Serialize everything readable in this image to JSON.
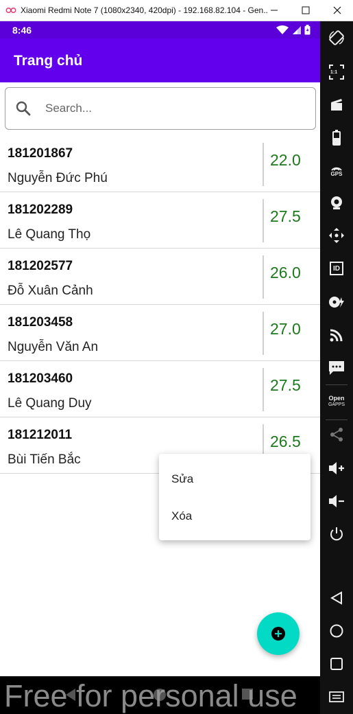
{
  "window": {
    "title": "Xiaomi Redmi Note 7 (1080x2340, 420dpi) - 192.168.82.104 - Gen..."
  },
  "status_bar": {
    "time": "8:46"
  },
  "app_bar": {
    "title": "Trang chủ"
  },
  "search": {
    "placeholder": "Search..."
  },
  "students": [
    {
      "id": "181201867",
      "name": "Nguyễn Đức Phú",
      "score": "22.0"
    },
    {
      "id": "181202289",
      "name": "Lê Quang Thọ",
      "score": "27.5"
    },
    {
      "id": "181202577",
      "name": "Đỗ Xuân Cảnh",
      "score": "26.0"
    },
    {
      "id": "181203458",
      "name": "Nguyễn Văn An",
      "score": "27.0"
    },
    {
      "id": "181203460",
      "name": "Lê Quang Duy",
      "score": "27.5"
    },
    {
      "id": "181212011",
      "name": "Bùi Tiến Bắc",
      "score": "26.5"
    }
  ],
  "context_menu": {
    "edit": "Sửa",
    "delete": "Xóa"
  },
  "watermark": "Free for personal use",
  "toolbar": {
    "gps": "GPS",
    "id": "ID",
    "open": "Open",
    "gapps": "GAPPS",
    "scale": "1:1"
  },
  "colors": {
    "status_bar": "#5b00d8",
    "app_bar": "#6200ee",
    "score": "#1b7a1b",
    "fab": "#03dac5"
  }
}
